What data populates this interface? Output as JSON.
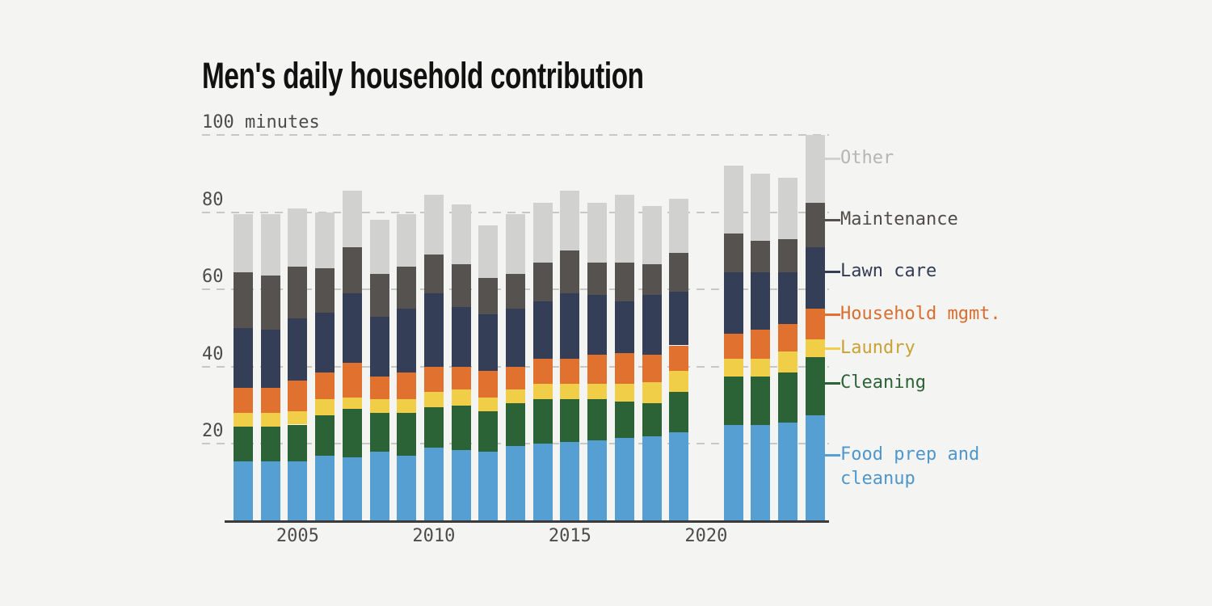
{
  "title": "Men's daily household contribution",
  "y_axis": {
    "top_label": "100 minutes",
    "unit": "minutes",
    "ticks": [
      20,
      40,
      60,
      80,
      100
    ],
    "max": 100
  },
  "x_axis": {
    "tick_labels": [
      "2005",
      "2010",
      "2015",
      "2020"
    ]
  },
  "colors": {
    "background": "#f4f4f2",
    "axis_line": "#3b3b3b",
    "gridline": "#c7c7c5",
    "axis_text": "#4c4c4c",
    "title_text": "#111111"
  },
  "chart_data": {
    "type": "bar",
    "stacked": true,
    "title": "Men's daily household contribution",
    "xlabel": "",
    "ylabel": "minutes per day",
    "ylim": [
      0,
      100
    ],
    "grid": "horizontal dashed",
    "legend_position": "right",
    "categories": [
      2003,
      2004,
      2005,
      2006,
      2007,
      2008,
      2009,
      2010,
      2011,
      2012,
      2013,
      2014,
      2015,
      2016,
      2017,
      2018,
      2019,
      2021,
      2022,
      2023,
      2024
    ],
    "series": [
      {
        "name": "Food prep and cleanup",
        "legend_label": "Food prep and\ncleanup",
        "color": "#569fd3",
        "label_color": "#4f97cb",
        "values": [
          15.5,
          15.5,
          15.5,
          17,
          16.5,
          18,
          17,
          19,
          18.5,
          18,
          19.5,
          20,
          20.5,
          21,
          21.5,
          22,
          23,
          25,
          25,
          25.5,
          27.5
        ]
      },
      {
        "name": "Cleaning",
        "legend_label": "Cleaning",
        "color": "#2b6236",
        "label_color": "#2b6236",
        "values": [
          9,
          9,
          9.5,
          10.5,
          12.5,
          10,
          11,
          10.5,
          11.5,
          10.5,
          11,
          11.5,
          11,
          10.5,
          9.5,
          8.5,
          10.5,
          12.5,
          12.5,
          13,
          15
        ]
      },
      {
        "name": "Laundry",
        "legend_label": "Laundry",
        "color": "#f1ce47",
        "label_color": "#c9a233",
        "values": [
          3.5,
          3.5,
          3.5,
          4,
          3,
          3.5,
          3.5,
          4,
          4,
          3.5,
          3.5,
          4,
          4,
          4,
          4.5,
          5.5,
          5.5,
          4.5,
          4.5,
          5.5,
          4.5
        ]
      },
      {
        "name": "Household mgmt.",
        "legend_label": "Household mgmt.",
        "color": "#e0712e",
        "label_color": "#d96e2e",
        "values": [
          6.5,
          6.5,
          8,
          7,
          9,
          6,
          7,
          6.5,
          6,
          7,
          6,
          6.5,
          6.5,
          7.5,
          8,
          7,
          6.5,
          6.5,
          7.5,
          7,
          8
        ]
      },
      {
        "name": "Lawn care",
        "legend_label": "Lawn care",
        "color": "#353e57",
        "label_color": "#333c55",
        "values": [
          15.5,
          15,
          16,
          15.5,
          18,
          15.5,
          16.5,
          19,
          15.5,
          14.5,
          15,
          15,
          17,
          15.5,
          13.5,
          15.5,
          14,
          16,
          15,
          13.5,
          16
        ]
      },
      {
        "name": "Maintenance",
        "legend_label": "Maintenance",
        "color": "#555250",
        "label_color": "#4f4c49",
        "values": [
          14.5,
          14,
          13.5,
          11.5,
          12,
          11,
          11,
          10,
          11,
          9.5,
          9,
          10,
          11,
          8.5,
          10,
          8,
          10,
          10,
          8,
          8.5,
          11.5
        ]
      },
      {
        "name": "Other",
        "legend_label": "Other",
        "color": "#d1d1d0",
        "label_color": "#b5b5b5",
        "values": [
          15,
          16,
          15,
          14.5,
          14.5,
          14,
          13.5,
          15.5,
          15.5,
          13.5,
          15.5,
          15.5,
          15.5,
          15.5,
          17.5,
          15,
          14,
          17.5,
          17.5,
          16,
          17.5
        ]
      }
    ]
  }
}
